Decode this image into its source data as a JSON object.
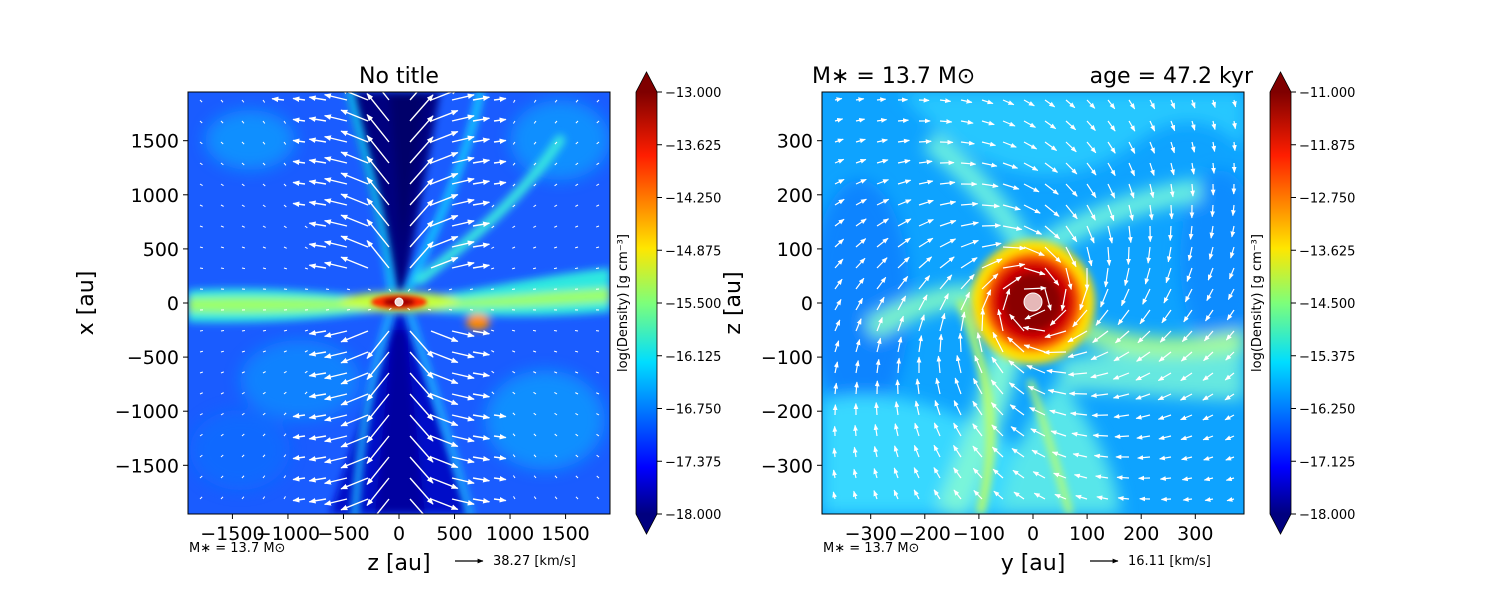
{
  "chart_data": [
    {
      "type": "heatmap",
      "title": "No title",
      "xlabel": "z [au]",
      "ylabel": "x [au]",
      "xlim": [
        -1900,
        1900
      ],
      "ylim": [
        -1950,
        1950
      ],
      "x_ticks": [
        "−1500",
        "−1000",
        "−500",
        "0",
        "500",
        "1000",
        "1500"
      ],
      "x_tick_values": [
        -1500,
        -1000,
        -500,
        0,
        500,
        1000,
        1500
      ],
      "y_ticks": [
        "1500",
        "1000",
        "500",
        "0",
        "−500",
        "−1000",
        "−1500"
      ],
      "y_tick_values": [
        1500,
        1000,
        500,
        0,
        -500,
        -1000,
        -1500
      ],
      "colorbar": {
        "label": "log(Density) [g cm⁻³]",
        "min": -18.0,
        "max": -13.0,
        "ticks": [
          "−13.000",
          "−13.625",
          "−14.250",
          "−14.875",
          "−15.500",
          "−16.125",
          "−16.750",
          "−17.375",
          "−18.000"
        ]
      },
      "mass_note": "M∗ = 13.7 M⊙",
      "vector_key": "38.27 [km/s]",
      "field": "edge-on: dense disk along x=0, low-density bipolar outflow cavity along z=0"
    },
    {
      "type": "heatmap",
      "title_left": "M∗ = 13.7 M⊙",
      "title_right": "age = 47.2 kyr",
      "xlabel": "y [au]",
      "ylabel": "z [au]",
      "xlim": [
        -390,
        390
      ],
      "ylim": [
        -390,
        390
      ],
      "x_ticks": [
        "−300",
        "−200",
        "−100",
        "0",
        "100",
        "200",
        "300"
      ],
      "x_tick_values": [
        -300,
        -200,
        -100,
        0,
        100,
        200,
        300
      ],
      "y_ticks": [
        "300",
        "200",
        "100",
        "0",
        "−100",
        "−200",
        "−300"
      ],
      "y_tick_values": [
        300,
        200,
        100,
        0,
        -100,
        -200,
        -300
      ],
      "colorbar": {
        "label": "log(Density) [g cm⁻³]",
        "min": -18.0,
        "max": -11.0,
        "ticks": [
          "−11.000",
          "−11.875",
          "−12.750",
          "−13.625",
          "−14.500",
          "−15.375",
          "−16.250",
          "−17.125",
          "−18.000"
        ]
      },
      "mass_note": "M∗ = 13.7 M⊙",
      "vector_key": "16.11 [km/s]",
      "field": "face-on: dense disk of radius ~70 au around the star with spiral arms"
    }
  ]
}
